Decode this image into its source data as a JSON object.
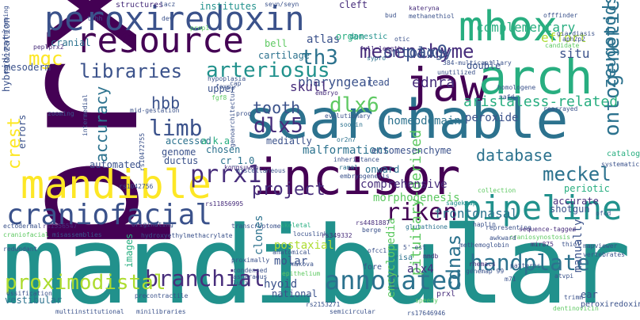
{
  "palette": {
    "dark_purple": "#440154",
    "deep_indigo": "#472d7b",
    "blue": "#3b528b",
    "slate_blue": "#2c728e",
    "teal": "#21918c",
    "green_teal": "#28ae80",
    "green": "#5ec962",
    "lime": "#addc30",
    "yellow": "#fde725",
    "background": "#ffffff"
  },
  "words": {
    "mandibular": "mandibular",
    "prx1": "prx1",
    "searchable": "searchable",
    "incisor": "incisor",
    "jaw": "jaw",
    "arch": "arch",
    "peroxiredoxin": "peroxiredoxin",
    "resource": "resource",
    "mhox": "mhox",
    "mandible": "mandible",
    "craniofacial": "craniofacial",
    "pipeline": "pipeline",
    "prrx1": "prrx1",
    "riken": "riken",
    "annotated": "annotated",
    "handplate": "handplate",
    "branchial": "branchial",
    "proximodistal": "proximodistal",
    "mesenchyme": "mesenchyme",
    "th3": "th3",
    "libraries": "libraries",
    "arteriosus": "arteriosus",
    "limb": "limb",
    "dlx5": "dlx5",
    "dlx6": "dlx6",
    "hbb": "hbb",
    "tooth": "tooth",
    "ontogenetic": "ontogenetic",
    "zeugopods": "zeugopods",
    "meckel": "meckel",
    "pax9": "pax9",
    "ontology": "ontology",
    "mgc": "mgc",
    "crest": "crest",
    "accuracy": "accuracy",
    "project": "project",
    "database": "database",
    "cdnas": "cdnas",
    "aristaless_related": "aristaless-related",
    "ednra": "ednra",
    "complementary": "complementary",
    "effort": "effort",
    "situ": "situ",
    "homeodomain": "homeodomain",
    "peroxide": "peroxide",
    "pharyngeal": "pharyngeal",
    "skull": "skull",
    "pituitary_derived": "pituitary-derived",
    "encyclopedia": "encyclopedia",
    "frontonasal": "frontonasal",
    "morphogenesis": "morphogenesis",
    "comprehensive": "comprehensive",
    "malformations": "malformations",
    "ectomesenchyme": "ectomesenchyme",
    "shotgun": "shotgun",
    "periotic": "periotic",
    "accurate": "accurate",
    "alx4": "alx4",
    "postaxial": "postaxial",
    "molar": "molar",
    "clones": "clones",
    "hyoid": "hyoid",
    "automated": "automated",
    "accessed": "accessed",
    "medially": "medially",
    "chosen": "chosen",
    "aka": "a.k.a",
    "genome": "genome",
    "ductus": "ductus",
    "cr_1_0": "cr_1.0",
    "upper": "upper",
    "hybridization": "hybridization",
    "mesoderm": "mesoderm",
    "cranial": "cranial",
    "structures": "structures",
    "institutes": "institutes",
    "cleft": "cleft",
    "atlas": "atlas",
    "bell": "bell",
    "organ": "organ",
    "domestic": "domestic",
    "cartilage": "cartilage",
    "double": "double",
    "read": "read",
    "manually": "manually",
    "images": "images",
    "errors": "errors",
    "national": "national",
    "vestibular": "vestibular",
    "ear": "ear",
    "prxl": "prxl",
    "peroxiredoxin2": "peroxiredoxin2",
    "catalog": "catalog",
    "onward": "onward",
    "fore": "fore",
    "risa": "risa",
    "sypro": "sypro",
    "full_length": "full-length",
    "multicapillary": "384-multicapillary",
    "unutilized": "unutilized",
    "homologene": "homologene",
    "nafd": "nafd",
    "rearrayed": "rearrayed",
    "embryo": "embryo",
    "evolutionary": "evolutionary",
    "soojin": "soojin",
    "or2n7": "or2n7",
    "kongsuwan": "kongsuwan",
    "inheri_tance": "inheri-tance",
    "ramal": "ramal",
    "embryogenesis": "embryogenesis",
    "sagekmap": "sagekmap",
    "collection": "collection",
    "systematic": "systematic",
    "rs4481887": "rs4481887",
    "berge": "berge",
    "glutathione": "glutathione",
    "representing": "representing",
    "craniosynostosis": "craniosynostosis",
    "sequence_tagged": "sequence-tagged",
    "mir875": "mir875",
    "thiol": "thiol",
    "awkward": "awkward",
    "mmdb": "mmdb",
    "haplin": "haplin",
    "methemoglobin": "methemoglobin",
    "rhemacs": "rhemacs",
    "genemap99": "genemap'99",
    "mapviewer": "mapviewer",
    "vertebrates": "vertebrates",
    "patterns": "patterns",
    "atvpi": "atvpi",
    "trimm": "trimm",
    "dentinovicin": "dentinovicin",
    "ofcc1": "ofcc1",
    "s_est": "5'-est",
    "ectodermal": "ectodermal",
    "rs1556547": "rs1556547",
    "originating": "originating",
    "transcriptome": "transcriptome",
    "skeletal": "skeletal",
    "locuslink": "locuslink",
    "rs349332": "rs349332",
    "craniofacial_small": "craniofacial",
    "misassemblies": "misassemblies",
    "hydroxyethylmethacrylate": "hydroxyethylmethacrylate",
    "redundant": "redundant",
    "rs11856995": "rs11856995",
    "proximally": "proximally",
    "makova": "makova",
    "anatomical": "anatomical",
    "condensed": "condensed",
    "asparagus": "asparagus",
    "epithelium": "epithelium",
    "lutz": "lutz",
    "ossification": "ossification",
    "precontractile": "precontractile",
    "multiinstitutional": "multiinstitutional",
    "minilibraries": "minilibraries",
    "rs2153271": "rs2153271",
    "semicircular": "semicircular",
    "rs17646946": "rs17646946",
    "speedy": "speedy",
    "tchh": "tchh",
    "dev": "dev",
    "lacz": "lacz",
    "seyn_seyn": "seyn/seyn",
    "bud": "bud",
    "kateryna": "kateryna",
    "methanethiol": "methanethiol",
    "prop1": "prop1",
    "offfinder": "offfinder",
    "giardiasis": "giardiasis",
    "aph2p2": "aph2p2",
    "candidate": "candidate",
    "peplprx2": "peplprx2",
    "early_mouthforming": "early-mouthforming",
    "otic": "otic",
    "hypoplasia": "hypoplasia",
    "cap": "cap",
    "fgf8": "fgf8",
    "mid_gestation": "mid-gestation",
    "proq": "proq",
    "zooming": "zooming",
    "intermedial": "intermedial",
    "genoarchitecture": "genoarchitecture",
    "rs10472755": "rs10472755",
    "ofcd": "ofcd",
    "m71": "m71",
    "rs1042756": "rs1042756",
    "miscellaneous": "miscellaneous",
    "foxp": "foxp"
  }
}
